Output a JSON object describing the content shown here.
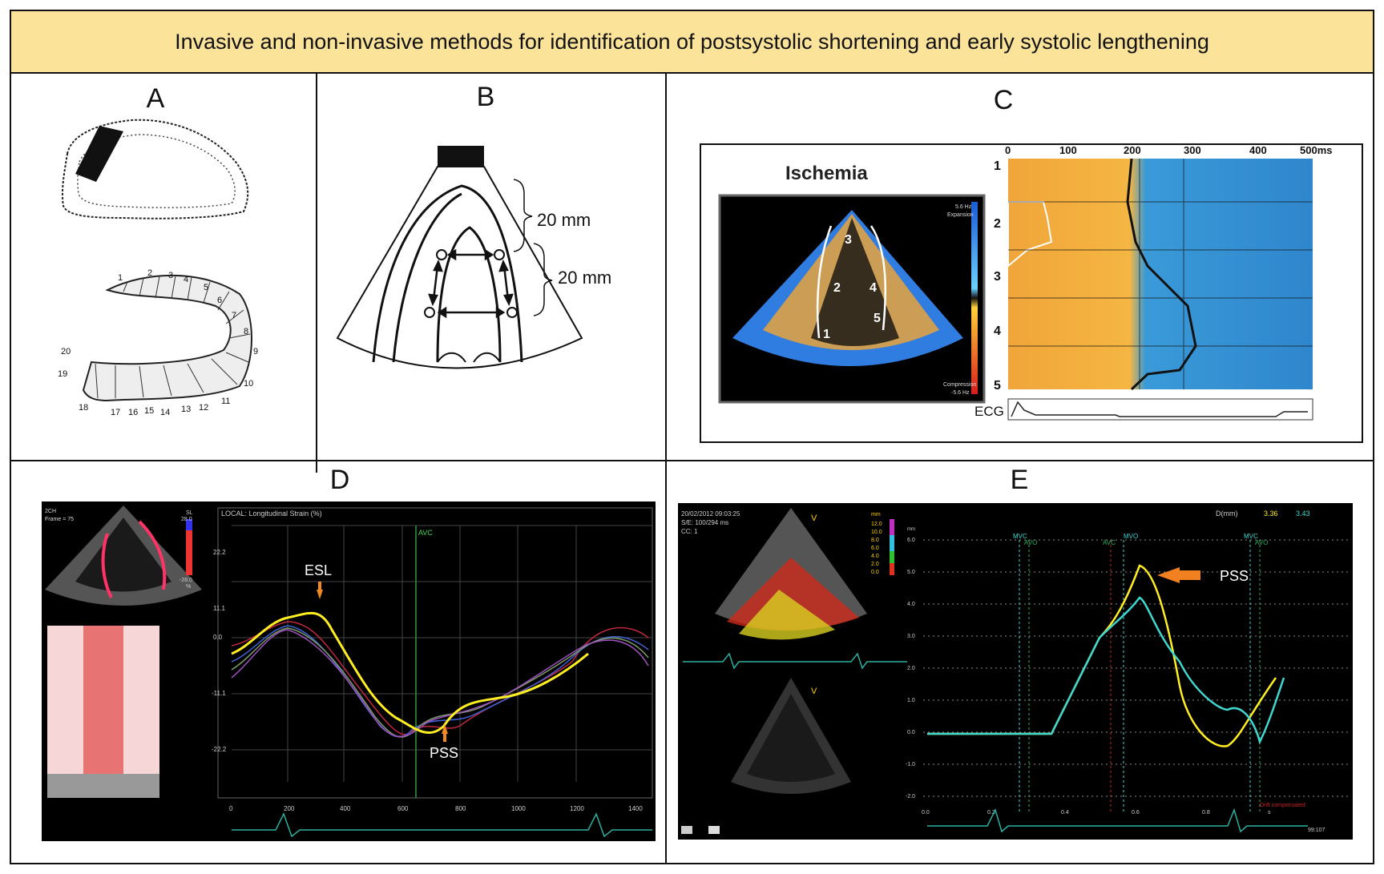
{
  "title": "Invasive and non-invasive methods for identification of postsystolic shortening and early systolic lengthening",
  "panels": {
    "a": {
      "label": "A",
      "segments": [
        "1",
        "2",
        "3",
        "4",
        "5",
        "6",
        "7",
        "8",
        "9",
        "10",
        "11",
        "12",
        "13",
        "14",
        "15",
        "16",
        "17",
        "18",
        "19",
        "20"
      ]
    },
    "b": {
      "label": "B",
      "dim1": "20 mm",
      "dim2": "20 mm"
    },
    "c": {
      "label": "C",
      "image_title": "Ischemia",
      "scale_top": "5.6 Hz",
      "scale_top_sub": "Expansion",
      "scale_bottom": "Compression",
      "scale_bottom_sub": "-5.6 Hz",
      "segments": [
        "1",
        "2",
        "3",
        "4",
        "5"
      ],
      "time_ticks": [
        "0",
        "100",
        "200",
        "300",
        "400",
        "500ms"
      ],
      "rows": [
        "1",
        "2",
        "3",
        "4",
        "5"
      ],
      "ecg": "ECG"
    },
    "d": {
      "label": "D",
      "chart_title": "LOCAL: Longitudinal Strain (%)",
      "avc": "AVC",
      "esl": "ESL",
      "pss": "PSS",
      "yticks": [
        "22.2",
        "11.1",
        "0.0",
        "-11.1",
        "-22.2"
      ],
      "xticks": [
        "0",
        "200",
        "400",
        "600",
        "800",
        "1000",
        "1200",
        "1400"
      ],
      "sl_top": "SL",
      "sl_max": "28.0",
      "sl_min": "-28.0",
      "sl_unit": "%",
      "frame_text": "Frame = 75",
      "mode": "2CH"
    },
    "e": {
      "label": "E",
      "date": "20/02/2012 09:03:25",
      "se": "S/E: 100/294 ms",
      "cc": "CC: 1",
      "dlabel": "D(mm)",
      "dval1": "3.36",
      "dval2": "3.43",
      "pss": "PSS",
      "markers": [
        "MVC",
        "AVO",
        "AVC",
        "MVO",
        "MVC",
        "AVO"
      ],
      "yticks": [
        "6.0",
        "5.0",
        "4.0",
        "3.0",
        "2.0",
        "1.0",
        "0.0",
        "-1.0",
        "-2.0"
      ],
      "scale": [
        "12.0",
        "10.0",
        "8.0",
        "6.0",
        "4.0",
        "2.0",
        "0.0"
      ],
      "scale_unit": "mm",
      "xticks": [
        "0.0",
        "0.2",
        "0.4",
        "0.6",
        "0.8"
      ],
      "drift": "Drift compensated",
      "hr": "99:107",
      "unit": "mm",
      "s": "s"
    }
  }
}
